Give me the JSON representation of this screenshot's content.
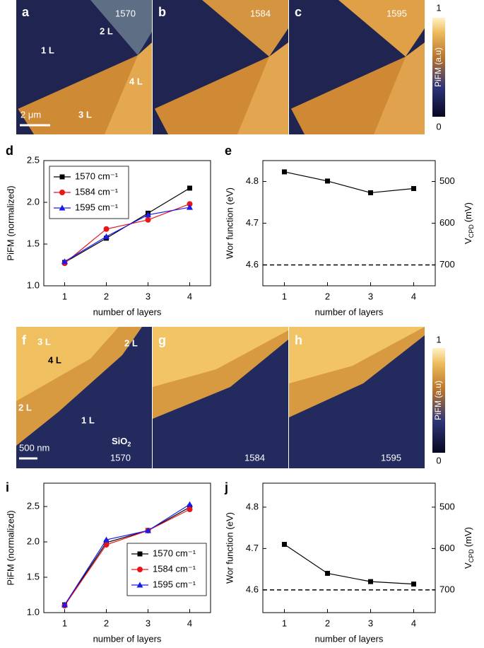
{
  "image_rows": [
    {
      "panels": [
        {
          "label": "a",
          "wavenumber": "1570",
          "layers": [
            "2 L",
            "1 L",
            "4 L",
            "3 L"
          ],
          "scale_bar": "2 μm"
        },
        {
          "label": "b",
          "wavenumber": "1584"
        },
        {
          "label": "c",
          "wavenumber": "1595"
        }
      ],
      "colorbar": {
        "max": "1",
        "min": "0",
        "label": "PiFM (a.u)"
      }
    },
    {
      "panels": [
        {
          "label": "f",
          "wavenumber": "1570",
          "layers": [
            "3 L",
            "2 L",
            "4 L",
            "2 L",
            "1 L"
          ],
          "substrate": [
            "SiO",
            "2"
          ],
          "scale_bar": "500 nm"
        },
        {
          "label": "g",
          "wavenumber": "1584"
        },
        {
          "label": "h",
          "wavenumber": "1595"
        }
      ],
      "colorbar": {
        "max": "1",
        "min": "0",
        "label": "PiFM (a.u)"
      }
    }
  ],
  "chart_data": [
    {
      "type": "line",
      "label": "d",
      "xlabel": "number of layers",
      "ylabel": "PiFM (normalized)",
      "x": [
        1,
        2,
        3,
        4
      ],
      "xlim": [
        0.5,
        4.5
      ],
      "xticks": [
        1,
        2,
        3,
        4
      ],
      "ylim": [
        1,
        2.5
      ],
      "yticks": [
        {
          "value": 1,
          "label": "1.0"
        },
        1.5,
        {
          "value": 2,
          "label": "2.0"
        },
        2.5
      ],
      "legend": "upper left",
      "series": [
        {
          "name": "1570 cm⁻¹",
          "color": "#000000",
          "marker": "square",
          "values": [
            1.28,
            1.57,
            1.87,
            2.17
          ]
        },
        {
          "name": "1584 cm⁻¹",
          "color": "#e8161b",
          "marker": "circle",
          "values": [
            1.27,
            1.68,
            1.79,
            1.98
          ]
        },
        {
          "name": "1595 cm⁻¹",
          "color": "#1a1aeb",
          "marker": "triangle",
          "values": [
            1.29,
            1.59,
            1.85,
            1.94
          ]
        }
      ]
    },
    {
      "type": "line",
      "label": "e",
      "xlabel": "number of layers",
      "ylabel": "Wor function (eV)",
      "y2label": [
        "V",
        "CPD",
        "(mV)"
      ],
      "x": [
        1,
        2,
        3,
        4
      ],
      "xlim": [
        0.5,
        4.5
      ],
      "xticks": [
        1,
        2,
        3,
        4
      ],
      "ylim": [
        4.55,
        4.85
      ],
      "yticks": [
        4.6,
        4.7,
        4.8
      ],
      "y2lim": [
        750,
        450
      ],
      "y2ticks": [
        500,
        600,
        700
      ],
      "hline": 4.6,
      "series": [
        {
          "color": "#000000",
          "marker": "square",
          "values": [
            4.823,
            4.801,
            4.773,
            4.783
          ]
        }
      ]
    },
    {
      "type": "line",
      "label": "i",
      "xlabel": "number of layers",
      "ylabel": "PiFM (normalized)",
      "x": [
        1,
        2,
        3,
        4
      ],
      "xlim": [
        0.5,
        4.5
      ],
      "xticks": [
        1,
        2,
        3,
        4
      ],
      "ylim": [
        1,
        2.83
      ],
      "yticks": [
        {
          "value": 1,
          "label": "1.0"
        },
        1.5,
        {
          "value": 2,
          "label": "2.0"
        },
        2.5
      ],
      "legend": "lower right",
      "series": [
        {
          "name": "1570 cm⁻¹",
          "color": "#000000",
          "marker": "square",
          "values": [
            1.11,
            1.99,
            2.16,
            2.49
          ]
        },
        {
          "name": "1584 cm⁻¹",
          "color": "#e8161b",
          "marker": "circle",
          "values": [
            1.1,
            1.96,
            2.16,
            2.46
          ]
        },
        {
          "name": "1595 cm⁻¹",
          "color": "#1a1aeb",
          "marker": "triangle",
          "values": [
            1.11,
            2.03,
            2.16,
            2.53
          ]
        }
      ]
    },
    {
      "type": "line",
      "label": "j",
      "xlabel": "number of layers",
      "ylabel": "Wor function (eV)",
      "y2label": [
        "V",
        "CPD",
        "(mV)"
      ],
      "x": [
        1,
        2,
        3,
        4
      ],
      "xlim": [
        0.5,
        4.5
      ],
      "xticks": [
        1,
        2,
        3,
        4
      ],
      "ylim": [
        4.545,
        4.858
      ],
      "yticks": [
        4.6,
        4.7,
        4.8
      ],
      "y2lim": [
        755,
        442
      ],
      "y2ticks": [
        500,
        600,
        700
      ],
      "hline": 4.6,
      "series": [
        {
          "color": "#000000",
          "marker": "square",
          "values": [
            4.71,
            4.64,
            4.62,
            4.614
          ]
        }
      ]
    }
  ]
}
